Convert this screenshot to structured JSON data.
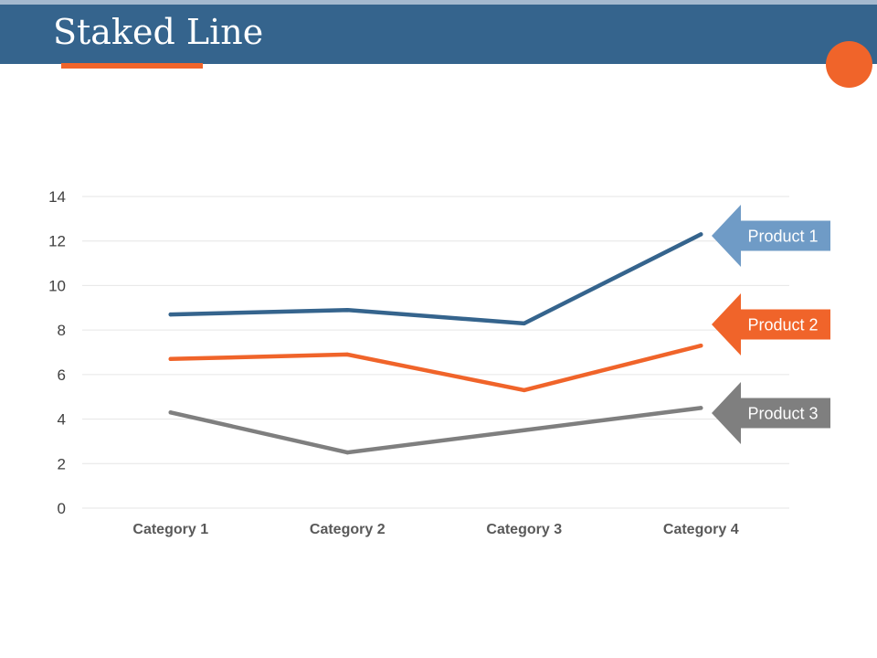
{
  "slide": {
    "title": "Staked Line",
    "colors": {
      "header": "#35648d",
      "top_strip": "#a4b9cf",
      "accent": "#f0642a"
    }
  },
  "chart_data": {
    "type": "line",
    "categories": [
      "Category 1",
      "Category 2",
      "Category 3",
      "Category 4"
    ],
    "ylim": [
      0,
      14
    ],
    "yticks": [
      0,
      2,
      4,
      6,
      8,
      10,
      12,
      14
    ],
    "grid": true,
    "legend": "callouts-right",
    "series": [
      {
        "name": "Product 1",
        "values": [
          8.7,
          8.9,
          8.3,
          12.3
        ],
        "color": "#35648d",
        "callout_color": "#6f9bc6"
      },
      {
        "name": "Product 2",
        "values": [
          6.7,
          6.9,
          5.3,
          7.3
        ],
        "color": "#f0642a",
        "callout_color": "#f0642a"
      },
      {
        "name": "Product 3",
        "values": [
          4.3,
          2.5,
          3.5,
          4.5
        ],
        "color": "#7f7f7f",
        "callout_color": "#7f7f7f"
      }
    ]
  }
}
